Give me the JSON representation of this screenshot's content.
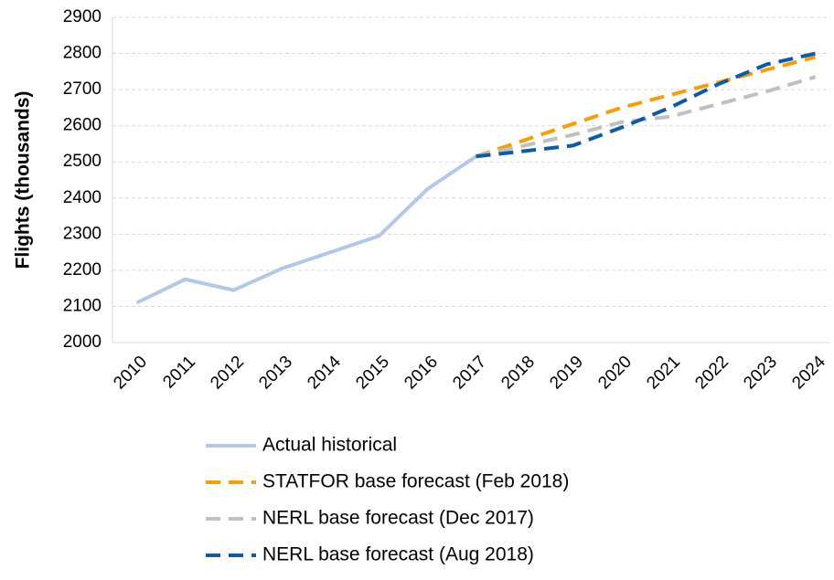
{
  "chart_data": {
    "type": "line",
    "y_label": "Flights (thousands)",
    "categories": [
      "2010",
      "2011",
      "2012",
      "2013",
      "2014",
      "2015",
      "2016",
      "2017",
      "2018",
      "2019",
      "2020",
      "2021",
      "2022",
      "2023",
      "2024"
    ],
    "series": [
      {
        "name": "Actual historical",
        "color": "#b4c7e7",
        "dash": false,
        "values": [
          2110,
          2175,
          2145,
          2205,
          2250,
          2295,
          2425,
          2515,
          null,
          null,
          null,
          null,
          null,
          null,
          null
        ]
      },
      {
        "name": "STATFOR base forecast (Feb 2018)",
        "color": "#f59d10",
        "dash": true,
        "values": [
          null,
          null,
          null,
          null,
          null,
          null,
          null,
          2515,
          2560,
          2605,
          2650,
          2685,
          2720,
          2755,
          2790
        ]
      },
      {
        "name": "NERL base forecast (Dec 2017)",
        "color": "#c0c0c0",
        "dash": true,
        "values": [
          null,
          null,
          null,
          null,
          null,
          null,
          null,
          2517,
          2545,
          2575,
          2610,
          2625,
          2660,
          2695,
          2735
        ]
      },
      {
        "name": "NERL base forecast (Aug 2018)",
        "color": "#0f5aa0",
        "dash": true,
        "values": [
          null,
          null,
          null,
          null,
          null,
          null,
          null,
          2515,
          2530,
          2545,
          2595,
          2650,
          2715,
          2770,
          2800
        ]
      }
    ],
    "ylim": [
      2000,
      2900
    ],
    "yticks": [
      2000,
      2100,
      2200,
      2300,
      2400,
      2500,
      2600,
      2700,
      2800,
      2900
    ],
    "grid": true,
    "legend": "bottom"
  }
}
